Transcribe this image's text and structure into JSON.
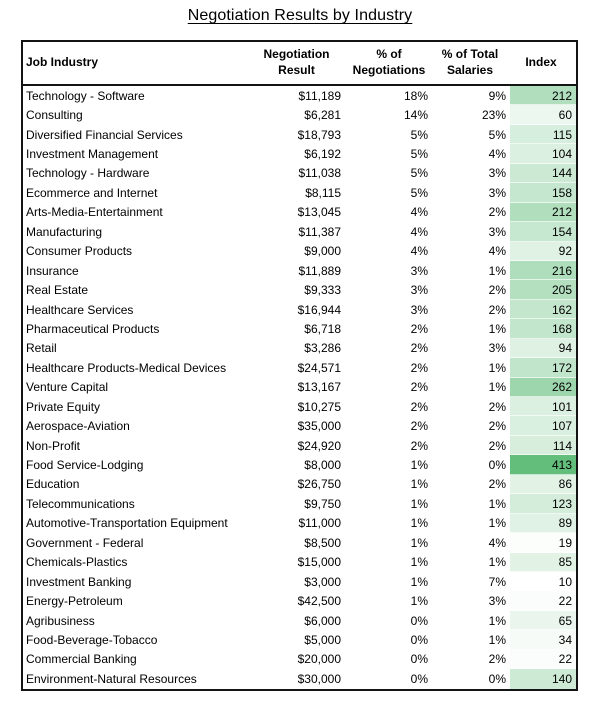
{
  "title": "Negotiation Results by Industry",
  "chart_data": {
    "type": "table",
    "title": "Negotiation Results by Industry",
    "columns": [
      "Job Industry",
      "Negotiation Result",
      "% of Negotiations",
      "% of Total Salaries",
      "Index"
    ],
    "header_display": [
      "Job Industry",
      "Negotiation\nResult",
      "% of\nNegotiations",
      "% of Total\nSalaries",
      "Index"
    ],
    "index_color_scale": {
      "min": 10,
      "max": 413,
      "min_color": "#FFFFFF",
      "max_color": "#63BE7B"
    },
    "rows": [
      {
        "industry": "Technology - Software",
        "result": "$11,189",
        "pct_neg": "18%",
        "pct_sal": "9%",
        "index": 212
      },
      {
        "industry": "Consulting",
        "result": "$6,281",
        "pct_neg": "14%",
        "pct_sal": "23%",
        "index": 60
      },
      {
        "industry": "Diversified Financial Services",
        "result": "$18,793",
        "pct_neg": "5%",
        "pct_sal": "5%",
        "index": 115
      },
      {
        "industry": "Investment Management",
        "result": "$6,192",
        "pct_neg": "5%",
        "pct_sal": "4%",
        "index": 104
      },
      {
        "industry": "Technology - Hardware",
        "result": "$11,038",
        "pct_neg": "5%",
        "pct_sal": "3%",
        "index": 144
      },
      {
        "industry": "Ecommerce and Internet",
        "result": "$8,115",
        "pct_neg": "5%",
        "pct_sal": "3%",
        "index": 158
      },
      {
        "industry": "Arts-Media-Entertainment",
        "result": "$13,045",
        "pct_neg": "4%",
        "pct_sal": "2%",
        "index": 212
      },
      {
        "industry": "Manufacturing",
        "result": "$11,387",
        "pct_neg": "4%",
        "pct_sal": "3%",
        "index": 154
      },
      {
        "industry": "Consumer Products",
        "result": "$9,000",
        "pct_neg": "4%",
        "pct_sal": "4%",
        "index": 92
      },
      {
        "industry": "Insurance",
        "result": "$11,889",
        "pct_neg": "3%",
        "pct_sal": "1%",
        "index": 216
      },
      {
        "industry": "Real Estate",
        "result": "$9,333",
        "pct_neg": "3%",
        "pct_sal": "2%",
        "index": 205
      },
      {
        "industry": "Healthcare Services",
        "result": "$16,944",
        "pct_neg": "3%",
        "pct_sal": "2%",
        "index": 162
      },
      {
        "industry": "Pharmaceutical Products",
        "result": "$6,718",
        "pct_neg": "2%",
        "pct_sal": "1%",
        "index": 168
      },
      {
        "industry": "Retail",
        "result": "$3,286",
        "pct_neg": "2%",
        "pct_sal": "3%",
        "index": 94
      },
      {
        "industry": "Healthcare Products-Medical Devices",
        "result": "$24,571",
        "pct_neg": "2%",
        "pct_sal": "1%",
        "index": 172
      },
      {
        "industry": "Venture Capital",
        "result": "$13,167",
        "pct_neg": "2%",
        "pct_sal": "1%",
        "index": 262
      },
      {
        "industry": "Private Equity",
        "result": "$10,275",
        "pct_neg": "2%",
        "pct_sal": "2%",
        "index": 101
      },
      {
        "industry": "Aerospace-Aviation",
        "result": "$35,000",
        "pct_neg": "2%",
        "pct_sal": "2%",
        "index": 107
      },
      {
        "industry": "Non-Profit",
        "result": "$24,920",
        "pct_neg": "2%",
        "pct_sal": "2%",
        "index": 114
      },
      {
        "industry": "Food Service-Lodging",
        "result": "$8,000",
        "pct_neg": "1%",
        "pct_sal": "0%",
        "index": 413
      },
      {
        "industry": "Education",
        "result": "$26,750",
        "pct_neg": "1%",
        "pct_sal": "2%",
        "index": 86
      },
      {
        "industry": "Telecommunications",
        "result": "$9,750",
        "pct_neg": "1%",
        "pct_sal": "1%",
        "index": 123
      },
      {
        "industry": "Automotive-Transportation Equipment",
        "result": "$11,000",
        "pct_neg": "1%",
        "pct_sal": "1%",
        "index": 89
      },
      {
        "industry": "Government - Federal",
        "result": "$8,500",
        "pct_neg": "1%",
        "pct_sal": "4%",
        "index": 19
      },
      {
        "industry": "Chemicals-Plastics",
        "result": "$15,000",
        "pct_neg": "1%",
        "pct_sal": "1%",
        "index": 85
      },
      {
        "industry": "Investment Banking",
        "result": "$3,000",
        "pct_neg": "1%",
        "pct_sal": "7%",
        "index": 10
      },
      {
        "industry": "Energy-Petroleum",
        "result": "$42,500",
        "pct_neg": "1%",
        "pct_sal": "3%",
        "index": 22
      },
      {
        "industry": "Agribusiness",
        "result": "$6,000",
        "pct_neg": "0%",
        "pct_sal": "1%",
        "index": 65
      },
      {
        "industry": "Food-Beverage-Tobacco",
        "result": "$5,000",
        "pct_neg": "0%",
        "pct_sal": "1%",
        "index": 34
      },
      {
        "industry": "Commercial Banking",
        "result": "$20,000",
        "pct_neg": "0%",
        "pct_sal": "2%",
        "index": 22
      },
      {
        "industry": "Environment-Natural Resources",
        "result": "$30,000",
        "pct_neg": "0%",
        "pct_sal": "0%",
        "index": 140
      }
    ]
  }
}
